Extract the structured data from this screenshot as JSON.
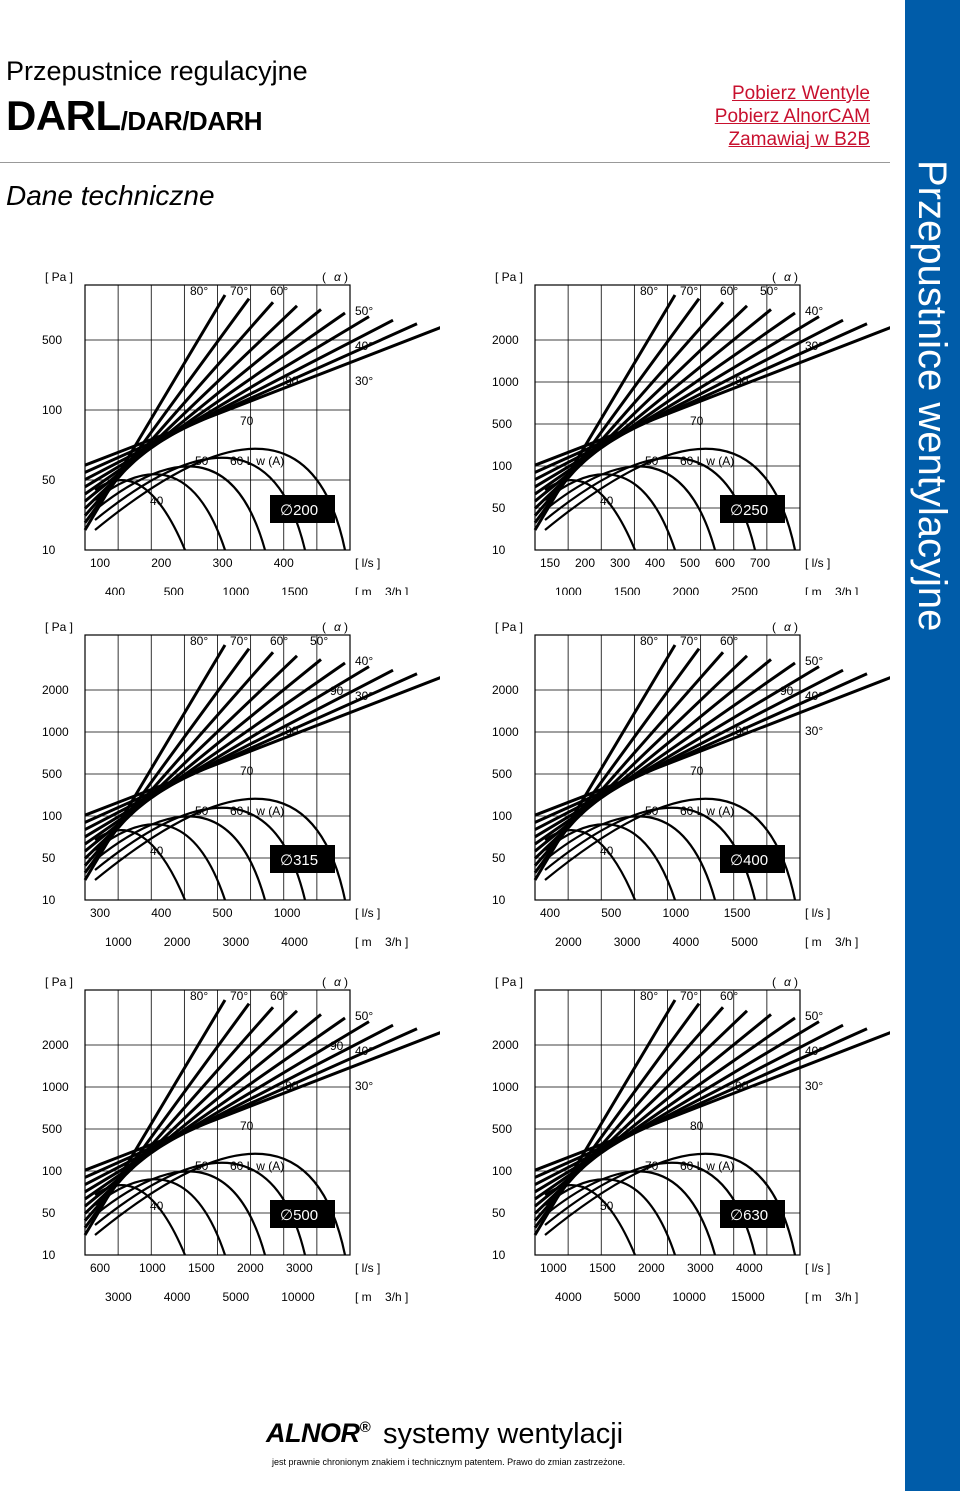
{
  "header": {
    "line1": "Przepustnice regulacyjne",
    "model_main": "DARL",
    "model_rest": "/DAR/DARH",
    "section": "Dane techniczne"
  },
  "links": [
    "Pobierz Wentyle",
    "Pobierz AlnorCAM",
    "Zamawiaj w B2B"
  ],
  "sidebar": {
    "label": "Przepustnice wentylacyjne",
    "color": "#005ca9"
  },
  "colors": {
    "link": "#c8102e",
    "badge": "#000000"
  },
  "units": {
    "pa": "[ Pa ]",
    "ls": "[ l/s ]",
    "m3": "[ m",
    "h": "3/h ]",
    "alpha_open": "(",
    "alpha": "α",
    "alpha_close": ")"
  },
  "charts": [
    {
      "id": "d200",
      "diameter": "200",
      "lw": "60 L w (A)",
      "pa_ticks": [
        "500",
        "100",
        "50",
        "10"
      ],
      "ls_ticks": [
        "100",
        "200",
        "300",
        "400"
      ],
      "m3_ticks": [
        "400",
        "500",
        "1000",
        "1500"
      ],
      "angles_top": [
        "80°",
        "70°",
        "60°"
      ],
      "angles_right": [
        "50°",
        "40°",
        "30°"
      ],
      "curve_labels": [
        "40",
        "50",
        "70",
        "80"
      ]
    },
    {
      "id": "d250",
      "diameter": "250",
      "lw": "60 L w (A)",
      "pa_ticks": [
        "2000",
        "1000",
        "500",
        "100",
        "50",
        "10"
      ],
      "ls_ticks": [
        "150",
        "200",
        "300",
        "400",
        "500",
        "600",
        "700"
      ],
      "m3_ticks": [
        "1000",
        "1500",
        "2000",
        "2500"
      ],
      "angles_top": [
        "80°",
        "70°",
        "60°",
        "50°"
      ],
      "angles_right": [
        "40°",
        "30°"
      ],
      "curve_labels": [
        "40",
        "50",
        "70",
        "80"
      ]
    },
    {
      "id": "d315",
      "diameter": "315",
      "lw": "60 L w (A)",
      "pa_ticks": [
        "2000",
        "1000",
        "500",
        "100",
        "50",
        "10"
      ],
      "ls_ticks": [
        "300",
        "400",
        "500",
        "1000"
      ],
      "m3_ticks": [
        "1000",
        "2000",
        "3000",
        "4000"
      ],
      "angles_top": [
        "80°",
        "70°",
        "60°",
        "50°"
      ],
      "angles_right": [
        "40°",
        "30°"
      ],
      "curve_labels": [
        "40",
        "50",
        "70",
        "80",
        "90"
      ]
    },
    {
      "id": "d400",
      "diameter": "400",
      "lw": "60 L w (A)",
      "pa_ticks": [
        "2000",
        "1000",
        "500",
        "100",
        "50",
        "10"
      ],
      "ls_ticks": [
        "400",
        "500",
        "1000",
        "1500"
      ],
      "m3_ticks": [
        "2000",
        "3000",
        "4000",
        "5000"
      ],
      "angles_top": [
        "80°",
        "70°",
        "60°"
      ],
      "angles_right": [
        "50°",
        "40°",
        "30°"
      ],
      "curve_labels": [
        "40",
        "50",
        "70",
        "80",
        "90"
      ]
    },
    {
      "id": "d500",
      "diameter": "500",
      "lw": "60 L w (A)",
      "pa_ticks": [
        "2000",
        "1000",
        "500",
        "100",
        "50",
        "10"
      ],
      "ls_ticks": [
        "600",
        "1000",
        "1500",
        "2000",
        "3000"
      ],
      "m3_ticks": [
        "3000",
        "4000",
        "5000",
        "10000"
      ],
      "angles_top": [
        "80°",
        "70°",
        "60°"
      ],
      "angles_right": [
        "50°",
        "40°",
        "30°"
      ],
      "curve_labels": [
        "40",
        "50",
        "70",
        "80",
        "90"
      ]
    },
    {
      "id": "d630",
      "diameter": "630",
      "lw": "60 L w (A)",
      "pa_ticks": [
        "2000",
        "1000",
        "500",
        "100",
        "50",
        "10"
      ],
      "ls_ticks": [
        "1000",
        "1500",
        "2000",
        "3000",
        "4000"
      ],
      "m3_ticks": [
        "4000",
        "5000",
        "10000",
        "15000"
      ],
      "angles_top": [
        "80°",
        "70°",
        "60°"
      ],
      "angles_right": [
        "50°",
        "40°",
        "30°"
      ],
      "curve_labels": [
        "50",
        "70",
        "80",
        "90"
      ]
    }
  ],
  "footer": {
    "brand": "ALNOR",
    "registered": "®",
    "tagline": "systemy wentylacji",
    "note": "jest prawnie chronionym znakiem i technicznym patentem. Prawo do zmian zastrzeżone."
  }
}
